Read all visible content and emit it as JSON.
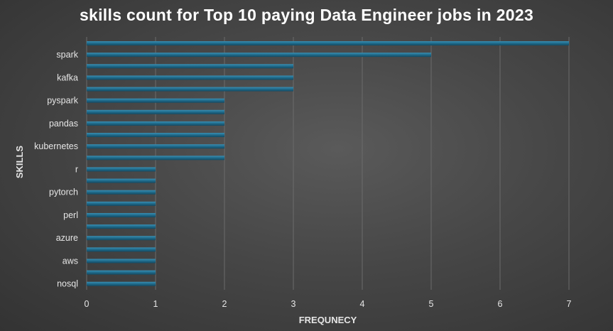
{
  "chart_data": {
    "type": "bar",
    "orientation": "horizontal",
    "title": "skills count for Top 10 paying Data Engineer jobs in 2023",
    "xlabel": "FREQUNECY",
    "ylabel": "SKILLS",
    "xlim": [
      0,
      7
    ],
    "x_ticks": [
      "0",
      "1",
      "2",
      "3",
      "4",
      "5",
      "6",
      "7"
    ],
    "grid": true,
    "bar_color": "#1f6a8a",
    "background_color": "#474747",
    "text_color": "#e6e6e6",
    "category_order": "top-to-bottom",
    "categories": [
      "",
      "spark",
      "",
      "kafka",
      "",
      "pyspark",
      "",
      "pandas",
      "",
      "kubernetes",
      "",
      "r",
      "",
      "pytorch",
      "",
      "perl",
      "",
      "azure",
      "",
      "aws",
      "",
      "nosql"
    ],
    "values": [
      7,
      5,
      3,
      3,
      3,
      2,
      2,
      2,
      2,
      2,
      2,
      1,
      1,
      1,
      1,
      1,
      1,
      1,
      1,
      1,
      1,
      1
    ]
  }
}
